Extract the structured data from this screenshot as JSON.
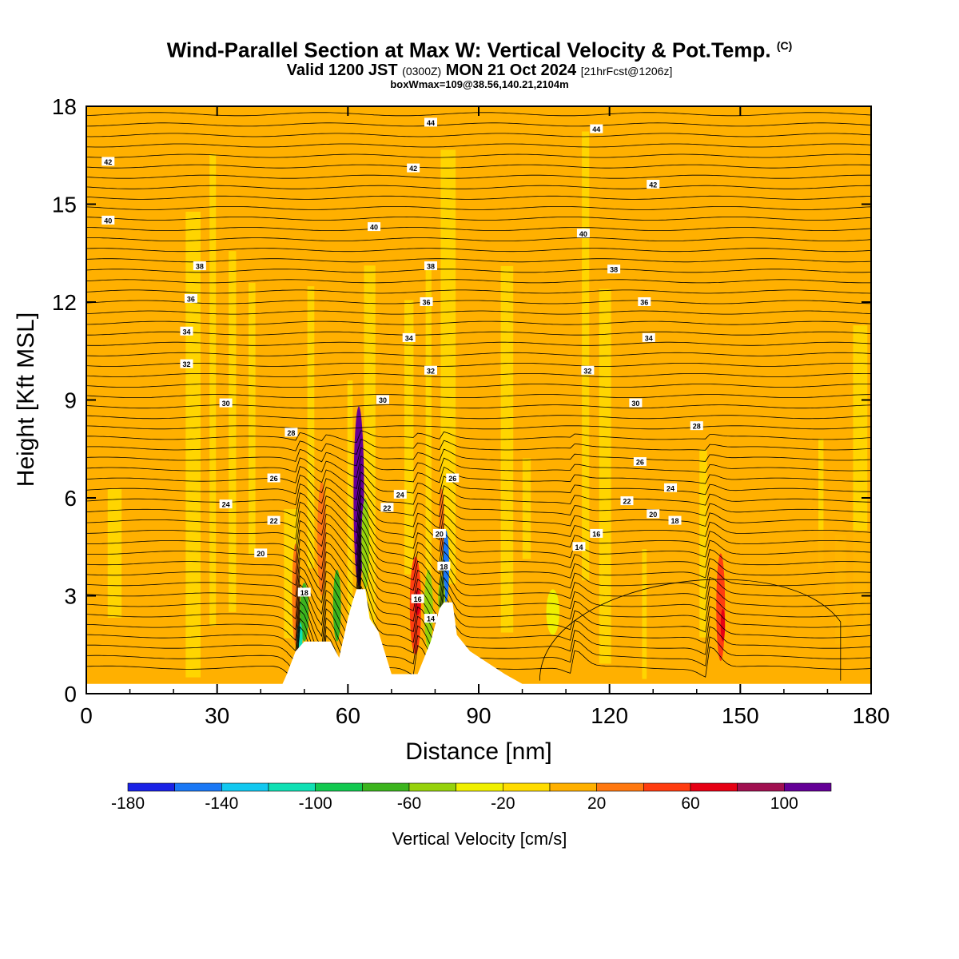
{
  "title": {
    "main": "Wind-Parallel Section at Max W: Vertical Velocity & Pot.Temp.",
    "mark": "(C)",
    "valid_prefix": "Valid 1200 JST",
    "valid_utc": "(0300Z)",
    "valid_date": "MON 21 Oct 2024",
    "valid_run": "[21hrFcst@1206z]",
    "box_line": "boxWmax=109@38.56,140.21,2104m"
  },
  "chart_data": {
    "type": "heatmap",
    "xlabel": "Distance [nm]",
    "ylabel": "Height [Kft MSL]",
    "xlim": [
      0,
      180
    ],
    "ylim": [
      0,
      18
    ],
    "x_ticks": [
      0,
      30,
      60,
      90,
      120,
      150,
      180
    ],
    "y_ticks": [
      0,
      3,
      6,
      9,
      12,
      15,
      18
    ],
    "background_value_cm_s": 0,
    "colorbar": {
      "title": "Vertical Velocity [cm/s]",
      "bounds": [
        -180,
        -160,
        -140,
        -120,
        -100,
        -80,
        -60,
        -40,
        -20,
        0,
        20,
        40,
        60,
        80,
        100,
        120
      ],
      "colors": [
        "#1a22e6",
        "#1a78f5",
        "#12c8f0",
        "#10e0b4",
        "#12c850",
        "#3cb41e",
        "#96d20c",
        "#f0f000",
        "#ffdc00",
        "#ffb000",
        "#ff7810",
        "#ff3c10",
        "#e60014",
        "#a01050",
        "#640096"
      ],
      "tick_labels": [
        -180,
        -140,
        -100,
        -60,
        -20,
        20,
        60,
        100
      ]
    },
    "terrain_kft": [
      [
        0,
        0.3
      ],
      [
        45,
        0.3
      ],
      [
        46,
        0.6
      ],
      [
        48,
        1.3
      ],
      [
        50,
        1.6
      ],
      [
        56,
        1.6
      ],
      [
        58,
        1.1
      ],
      [
        60,
        2.3
      ],
      [
        61,
        2.8
      ],
      [
        62,
        3.2
      ],
      [
        64,
        3.2
      ],
      [
        65,
        2.3
      ],
      [
        67,
        1.9
      ],
      [
        70,
        0.6
      ],
      [
        76,
        0.6
      ],
      [
        79,
        1.6
      ],
      [
        81,
        2.6
      ],
      [
        82,
        2.8
      ],
      [
        84,
        2.8
      ],
      [
        85,
        1.8
      ],
      [
        88,
        1.3
      ],
      [
        96,
        0.6
      ],
      [
        100,
        0.3
      ],
      [
        180,
        0.3
      ]
    ],
    "velocity_features": [
      {
        "x": 62.5,
        "y_bottom": 3.3,
        "y_top": 8.8,
        "half_width": 1.2,
        "w": 110
      },
      {
        "x": 62.5,
        "y_bottom": 3.8,
        "y_top": 7.6,
        "half_width": 0.6,
        "w": 120
      },
      {
        "x": 75.5,
        "y_bottom": 1.2,
        "y_top": 4.2,
        "half_width": 1.3,
        "w": 40
      },
      {
        "x": 76.0,
        "y_bottom": 2.4,
        "y_top": 3.2,
        "half_width": 0.7,
        "w": 70
      },
      {
        "x": 145.5,
        "y_bottom": 1.0,
        "y_top": 4.3,
        "half_width": 1.0,
        "w": 50
      },
      {
        "x": 146.0,
        "y_bottom": 1.6,
        "y_top": 2.6,
        "half_width": 0.5,
        "w": 70
      },
      {
        "x": 54.0,
        "y_bottom": 3.0,
        "y_top": 6.5,
        "half_width": 1.0,
        "w": 30
      },
      {
        "x": 48.0,
        "y_bottom": 1.5,
        "y_top": 4.6,
        "half_width": 0.8,
        "w": 30
      },
      {
        "x": 81.5,
        "y_bottom": 4.2,
        "y_top": 6.3,
        "half_width": 0.6,
        "w": 30
      },
      {
        "x": 50.0,
        "y_bottom": 1.6,
        "y_top": 3.4,
        "half_width": 1.0,
        "w": -70
      },
      {
        "x": 49.0,
        "y_bottom": 1.2,
        "y_top": 2.2,
        "half_width": 0.6,
        "w": -110
      },
      {
        "x": 57.5,
        "y_bottom": 1.6,
        "y_top": 3.8,
        "half_width": 0.9,
        "w": -70
      },
      {
        "x": 64.0,
        "y_bottom": 3.2,
        "y_top": 6.0,
        "half_width": 0.9,
        "w": -50
      },
      {
        "x": 78.5,
        "y_bottom": 1.4,
        "y_top": 3.8,
        "half_width": 1.0,
        "w": -60
      },
      {
        "x": 82.5,
        "y_bottom": 2.8,
        "y_top": 5.0,
        "half_width": 0.7,
        "w": -150
      },
      {
        "x": 81.5,
        "y_bottom": 2.2,
        "y_top": 3.6,
        "half_width": 0.8,
        "w": -60
      },
      {
        "x": 107.0,
        "y_bottom": 1.8,
        "y_top": 3.2,
        "half_width": 1.5,
        "w": -30
      }
    ],
    "isentrope_labels": [
      {
        "label": "44",
        "x": 79,
        "y": 17.5
      },
      {
        "label": "44",
        "x": 117,
        "y": 17.3
      },
      {
        "label": "42",
        "x": 5,
        "y": 16.3
      },
      {
        "label": "42",
        "x": 75,
        "y": 16.1
      },
      {
        "label": "42",
        "x": 130,
        "y": 15.6
      },
      {
        "label": "40",
        "x": 5,
        "y": 14.5
      },
      {
        "label": "40",
        "x": 66,
        "y": 14.3
      },
      {
        "label": "40",
        "x": 114,
        "y": 14.1
      },
      {
        "label": "38",
        "x": 26,
        "y": 13.1
      },
      {
        "label": "38",
        "x": 79,
        "y": 13.1
      },
      {
        "label": "38",
        "x": 121,
        "y": 13.0
      },
      {
        "label": "36",
        "x": 24,
        "y": 12.1
      },
      {
        "label": "36",
        "x": 78,
        "y": 12.0
      },
      {
        "label": "36",
        "x": 128,
        "y": 12.0
      },
      {
        "label": "34",
        "x": 23,
        "y": 11.1
      },
      {
        "label": "34",
        "x": 74,
        "y": 10.9
      },
      {
        "label": "34",
        "x": 129,
        "y": 10.9
      },
      {
        "label": "32",
        "x": 23,
        "y": 10.1
      },
      {
        "label": "32",
        "x": 79,
        "y": 9.9
      },
      {
        "label": "32",
        "x": 115,
        "y": 9.9
      },
      {
        "label": "30",
        "x": 32,
        "y": 8.9
      },
      {
        "label": "30",
        "x": 68,
        "y": 9.0
      },
      {
        "label": "30",
        "x": 126,
        "y": 8.9
      },
      {
        "label": "28",
        "x": 47,
        "y": 8.0
      },
      {
        "label": "28",
        "x": 140,
        "y": 8.2
      },
      {
        "label": "26",
        "x": 43,
        "y": 6.6
      },
      {
        "label": "26",
        "x": 84,
        "y": 6.6
      },
      {
        "label": "26",
        "x": 127,
        "y": 7.1
      },
      {
        "label": "24",
        "x": 32,
        "y": 5.8
      },
      {
        "label": "24",
        "x": 72,
        "y": 6.1
      },
      {
        "label": "24",
        "x": 134,
        "y": 6.3
      },
      {
        "label": "22",
        "x": 43,
        "y": 5.3
      },
      {
        "label": "22",
        "x": 69,
        "y": 5.7
      },
      {
        "label": "22",
        "x": 124,
        "y": 5.9
      },
      {
        "label": "20",
        "x": 40,
        "y": 4.3
      },
      {
        "label": "20",
        "x": 81,
        "y": 4.9
      },
      {
        "label": "20",
        "x": 130,
        "y": 5.5
      },
      {
        "label": "18",
        "x": 50,
        "y": 3.1
      },
      {
        "label": "18",
        "x": 82,
        "y": 3.9
      },
      {
        "label": "18",
        "x": 135,
        "y": 5.3
      },
      {
        "label": "16",
        "x": 76,
        "y": 2.9
      },
      {
        "label": "16",
        "x": 117,
        "y": 4.9
      },
      {
        "label": "14",
        "x": 79,
        "y": 2.3
      },
      {
        "label": "14",
        "x": 113,
        "y": 4.5
      }
    ]
  }
}
